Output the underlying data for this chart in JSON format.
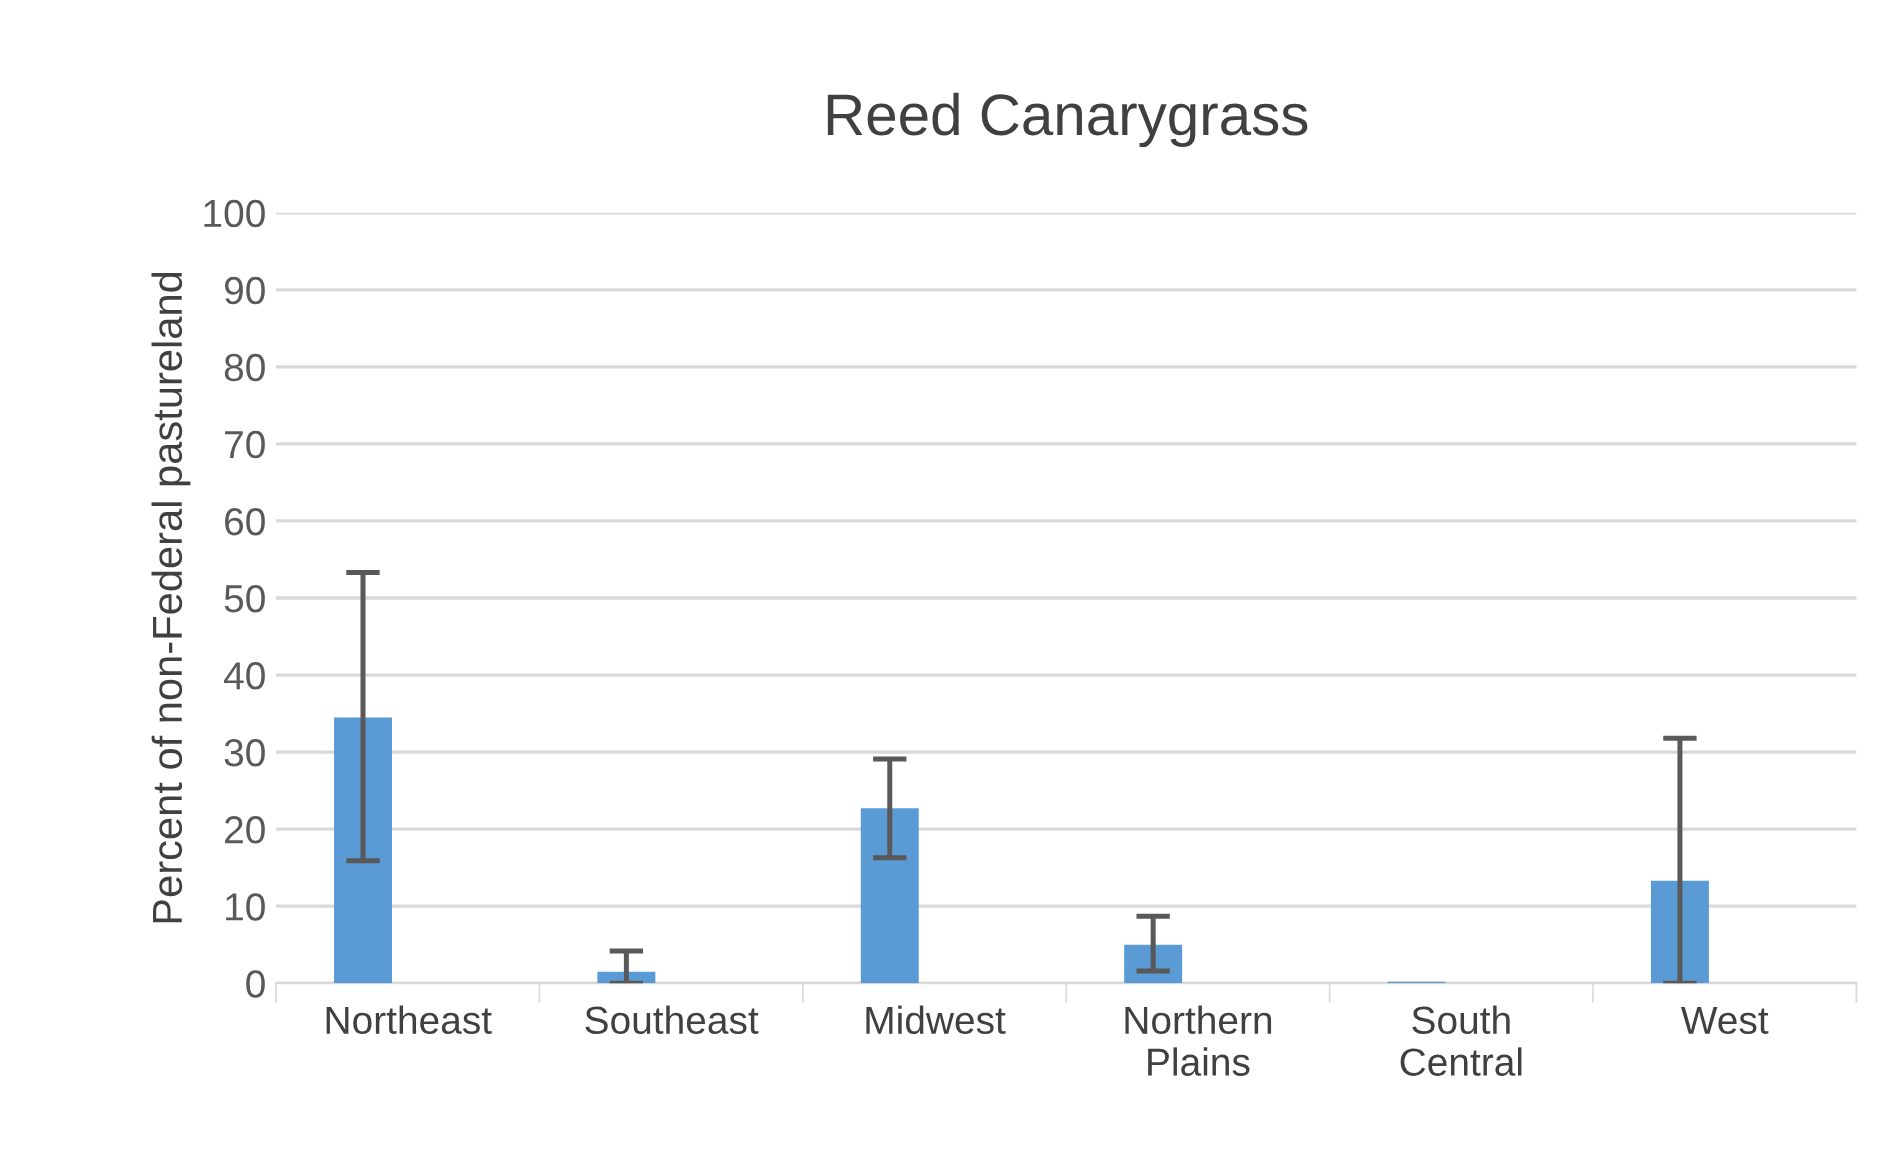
{
  "chart_data": {
    "type": "bar",
    "title": "Reed Canarygrass",
    "ylabel": "Percent of non-Federal pastureland",
    "categories": [
      "Northeast",
      "Southeast",
      "Midwest",
      "Northern\nPlains",
      "South\nCentral",
      "West"
    ],
    "series": [
      {
        "color": "#5b9bd5",
        "values": [
          34.5,
          1.5,
          22.7,
          5.0,
          0.2,
          13.3
        ],
        "errors": [
          [
            15.9,
            53.3
          ],
          [
            0,
            4.2
          ],
          [
            16.3,
            29.1
          ],
          [
            1.6,
            8.7
          ],
          null,
          [
            0,
            31.8
          ]
        ]
      }
    ],
    "ylim": [
      0,
      100
    ],
    "yticks": [
      0,
      10,
      20,
      30,
      40,
      50,
      60,
      70,
      80,
      90,
      100
    ],
    "grid": "y",
    "legend": false
  }
}
